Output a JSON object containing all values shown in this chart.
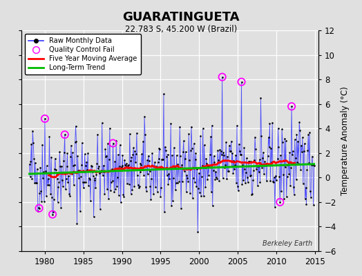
{
  "title": "GUARATINGUETA",
  "subtitle": "22.783 S, 45.200 W (Brazil)",
  "ylabel": "Temperature Anomaly (°C)",
  "watermark": "Berkeley Earth",
  "xlim": [
    1977,
    2015.5
  ],
  "ylim": [
    -6,
    12
  ],
  "yticks": [
    -6,
    -4,
    -2,
    0,
    2,
    4,
    6,
    8,
    10,
    12
  ],
  "xticks": [
    1980,
    1985,
    1990,
    1995,
    2000,
    2005,
    2010,
    2015
  ],
  "bg_color": "#e0e0e0",
  "grid_color": "#ffffff",
  "raw_line_color": "#3333ff",
  "raw_marker_color": "#000000",
  "qc_marker_color": "#ff00ff",
  "moving_avg_color": "#ff0000",
  "trend_color": "#00bb00",
  "trend_y0": 0.3,
  "trend_y1": 1.1,
  "seed": 42
}
